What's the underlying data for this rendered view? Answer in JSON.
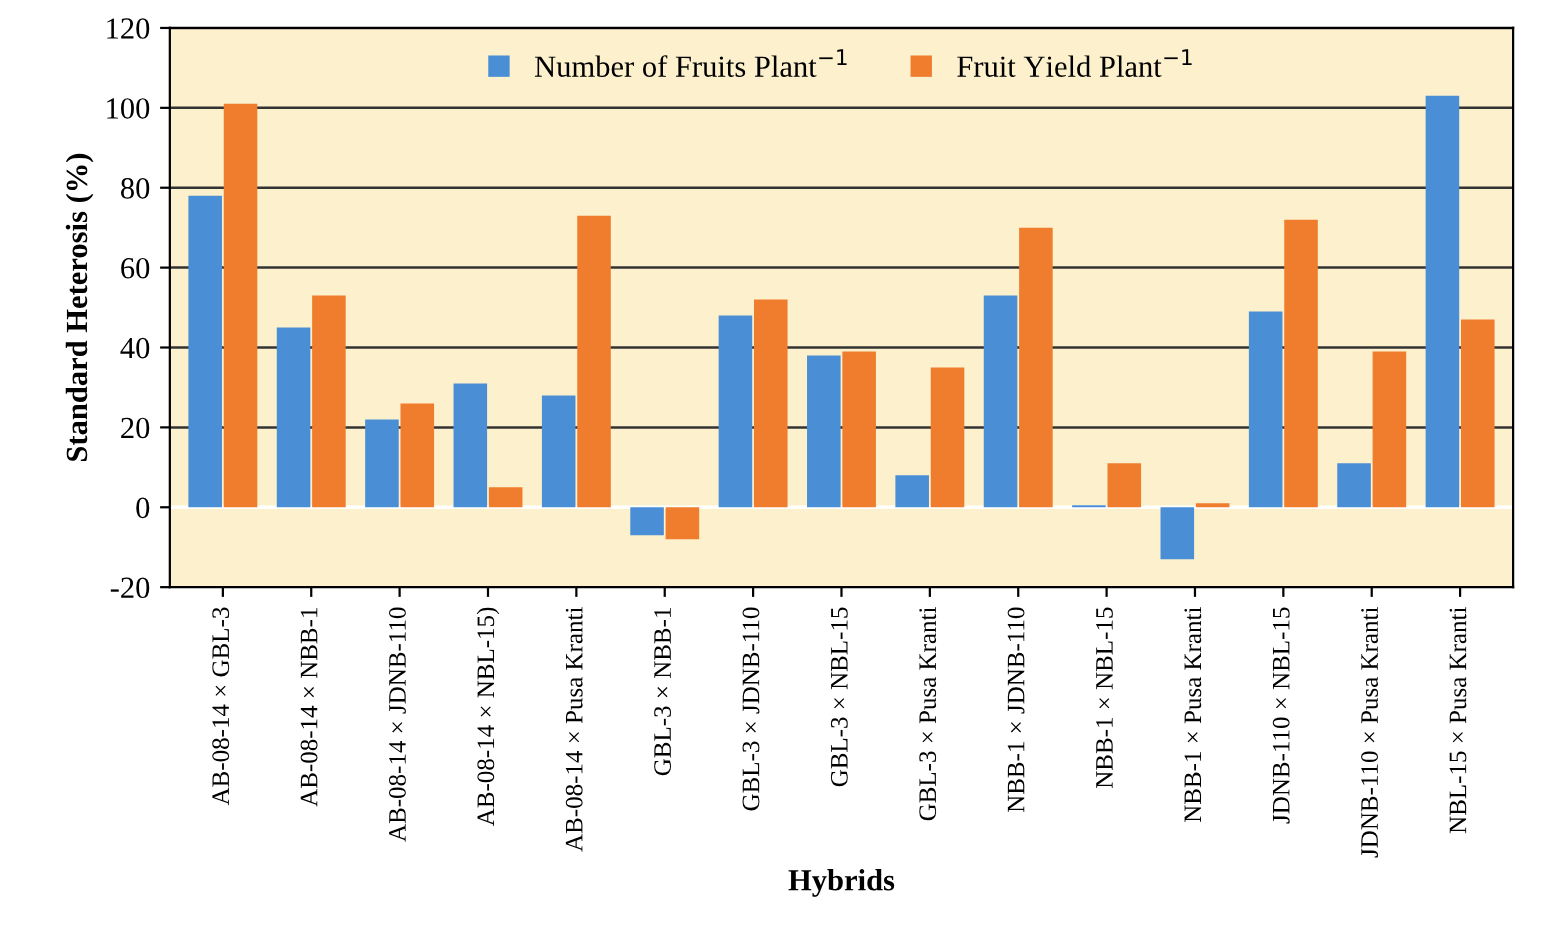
{
  "chart_data": {
    "type": "bar",
    "xlabel": "Hybrids",
    "ylabel": "Standard Heterosis (%)",
    "categories": [
      "AB-08-14 × GBL-3",
      "AB-08-14 × NBB-1",
      "AB-08-14 × JDNB-110",
      "AB-08-14 × NBL-15)",
      "AB-08-14 × Pusa Kranti",
      "GBL-3 × NBB-1",
      "GBL-3 × JDNB-110",
      "GBL-3 × NBL-15",
      "GBL-3 × Pusa Kranti",
      "NBB-1 × JDNB-110",
      "NBB-1 × NBL-15",
      "NBB-1 × Pusa Kranti",
      "JDNB-110 × NBL-15",
      "JDNB-110 × Pusa Kranti",
      "NBL-15 × Pusa Kranti"
    ],
    "series": [
      {
        "name": "Number of Fruits Plant$^{−1}$",
        "color": "#4a8fd6",
        "values": [
          78,
          45,
          22,
          31,
          28,
          -7,
          48,
          38,
          8,
          53,
          0.5,
          -13,
          49,
          11,
          103
        ]
      },
      {
        "name": "Fruit Yield Plant$^{−1}$",
        "color": "#ef7d2d",
        "values": [
          101,
          53,
          26,
          5,
          73,
          -8,
          52,
          39,
          35,
          70,
          11,
          1,
          72,
          39,
          47
        ]
      }
    ],
    "ylim": [
      -20,
      120
    ],
    "yticks": [
      -20,
      0,
      20,
      40,
      60,
      80,
      100,
      120
    ],
    "grid": "y",
    "legend": "top"
  }
}
